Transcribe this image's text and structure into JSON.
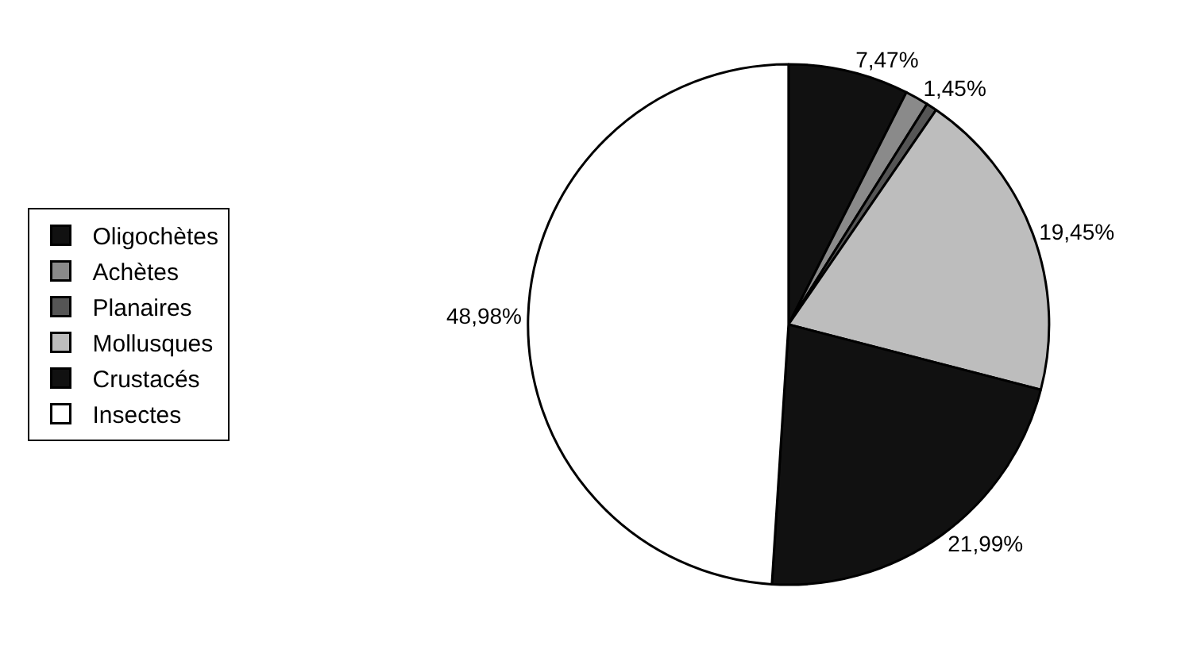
{
  "chart_data": {
    "type": "pie",
    "categories": [
      "Oligochètes",
      "Achètes",
      "Planaires",
      "Mollusques",
      "Crustacés",
      "Insectes"
    ],
    "values": [
      7.47,
      1.45,
      0.66,
      19.45,
      21.99,
      48.98
    ],
    "value_labels": [
      "7,47%",
      "1,45%",
      null,
      "19,45%",
      "21,99%",
      "48,98%"
    ],
    "colors": [
      "#111111",
      "#8a8a8a",
      "#555555",
      "#bdbdbd",
      "#111111",
      "#ffffff"
    ],
    "legend": "left"
  }
}
